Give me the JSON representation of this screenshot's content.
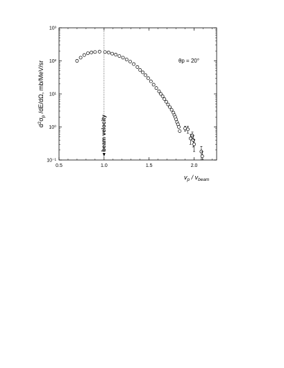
{
  "chart_data": {
    "type": "scatter",
    "xlabel": "v_p / v_beam",
    "ylabel": "d²σ_p /dE/dΩ, mb/MeV/sr",
    "xlim": [
      0.5,
      2.25
    ],
    "ylim": [
      0.1,
      1000
    ],
    "yscale": "log",
    "grid": false,
    "x_ticks": [
      "0.5",
      "1.0",
      "1.5",
      "2.0"
    ],
    "y_ticks": [
      "10⁻¹",
      "10⁰",
      "10¹",
      "10²",
      "10³"
    ],
    "annotations": {
      "angle_label": "θp = 20°",
      "beam_velocity_label": "beam velocity",
      "beam_velocity_x": 1.0
    },
    "series": [
      {
        "marker": "open-circle",
        "x": [
          0.7,
          0.74,
          0.78,
          0.82,
          0.86,
          0.9,
          0.95,
          1.01,
          1.05,
          1.09,
          1.13,
          1.17,
          1.21,
          1.25,
          1.29,
          1.33,
          1.37,
          1.4,
          1.43,
          1.46,
          1.49,
          1.52,
          1.55,
          1.58,
          1.61,
          1.63,
          1.65,
          1.67,
          1.69,
          1.71,
          1.73,
          1.75,
          1.77,
          1.78,
          1.79,
          1.8,
          1.81,
          1.82,
          1.83,
          1.84,
          1.9,
          1.93,
          1.96,
          1.98,
          1.99,
          2.0,
          2.08,
          2.09
        ],
        "y": [
          100,
          125,
          150,
          170,
          180,
          185,
          190,
          185,
          180,
          165,
          155,
          140,
          125,
          110,
          95,
          80,
          65,
          53,
          45,
          37,
          30,
          24,
          19,
          15,
          12,
          10,
          8.5,
          7.0,
          5.8,
          4.8,
          4.0,
          3.3,
          2.7,
          2.3,
          2.0,
          1.7,
          1.4,
          1.2,
          1.0,
          0.75,
          0.9,
          0.85,
          0.45,
          0.55,
          0.4,
          0.3,
          0.18,
          0.13
        ],
        "yerr": [
          0,
          0,
          0,
          0,
          0,
          0,
          0,
          0,
          0,
          0,
          0,
          0,
          0,
          0,
          0,
          0,
          0,
          0,
          0,
          0,
          0,
          0,
          0,
          0,
          0,
          0,
          0,
          0,
          0,
          0,
          0,
          0,
          0,
          0,
          0,
          0,
          0,
          0,
          0,
          0,
          0.15,
          0.2,
          0.15,
          0.15,
          0.15,
          0.12,
          0.08,
          0.05
        ]
      }
    ]
  }
}
